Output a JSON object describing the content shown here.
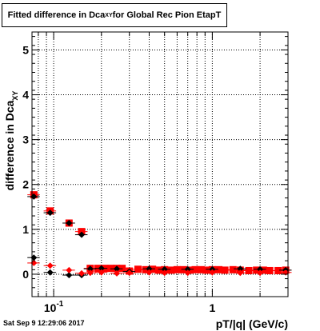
{
  "title_main": "Fitted difference in Dca",
  "title_sub": "XY",
  "title_rest": " for Global Rec Pion EtapT",
  "timestamp": "Sat Sep  9 12:29:06 2017",
  "colors": {
    "red": "#ff0000",
    "black": "#000000",
    "grid": "#000000"
  },
  "chart_data": {
    "type": "scatter",
    "xlabel": "pT/|q| (GeV/c)",
    "ylabel_main": "difference in Dca",
    "ylabel_sub": "XY",
    "x_scale": "log",
    "xlim": [
      0.073,
      3.0
    ],
    "ylim": [
      -0.5,
      5.4
    ],
    "grid": true,
    "y_ticks": [
      0,
      1,
      2,
      3,
      4,
      5
    ],
    "y_tick_labels": [
      "0",
      "1",
      "2",
      "3",
      "4",
      "5"
    ],
    "x_tick_labels": [
      {
        "value": 0.1,
        "base": "10",
        "exp": "-1"
      },
      {
        "value": 1,
        "base": "1",
        "exp": ""
      }
    ],
    "series": [
      {
        "color": "#ff0000",
        "marker": "square",
        "x": [
          0.075,
          0.095,
          0.125,
          0.15,
          0.17,
          0.19,
          0.21,
          0.23,
          0.25,
          0.27,
          0.3,
          0.34,
          0.38,
          0.42,
          0.46,
          0.5,
          0.55,
          0.6,
          0.66,
          0.72,
          0.78,
          0.85,
          0.92,
          1.0,
          1.1,
          1.2,
          1.35,
          1.5,
          1.7,
          1.9,
          2.1,
          2.3,
          2.6,
          2.9
        ],
        "y": [
          1.77,
          1.41,
          1.14,
          0.95,
          0.13,
          0.13,
          0.13,
          0.13,
          0.13,
          0.13,
          0.07,
          0.11,
          0.1,
          0.11,
          0.09,
          0.1,
          0.09,
          0.1,
          0.1,
          0.09,
          0.1,
          0.1,
          0.09,
          0.1,
          0.1,
          0.09,
          0.1,
          0.09,
          0.08,
          0.09,
          0.09,
          0.08,
          0.08,
          0.09
        ]
      },
      {
        "color": "#000000",
        "marker": "diamond",
        "x": [
          0.075,
          0.095,
          0.125,
          0.15,
          0.17,
          0.2,
          0.25,
          0.3,
          0.4,
          0.5,
          0.7,
          1.0,
          1.5,
          2.0,
          2.9
        ],
        "y": [
          1.73,
          1.37,
          1.14,
          0.88,
          0.12,
          0.13,
          0.12,
          0.06,
          0.12,
          0.11,
          0.11,
          0.11,
          0.12,
          0.11,
          0.09
        ]
      },
      {
        "color": "#000000",
        "marker": "diamond",
        "x": [
          0.075,
          0.095,
          0.125,
          0.15
        ],
        "y": [
          0.37,
          0.04,
          -0.02,
          -0.02
        ]
      },
      {
        "color": "#ff0000",
        "marker": "diamond",
        "x": [
          0.075,
          0.095,
          0.125,
          0.15,
          0.17,
          0.2,
          0.25,
          0.3,
          0.4,
          0.5,
          0.7,
          1.0,
          1.5,
          2.0,
          2.9
        ],
        "y": [
          0.25,
          0.19,
          0.09,
          0.02,
          0.03,
          0.04,
          0.02,
          0.03,
          0.04,
          0.03,
          0.03,
          0.04,
          0.03,
          0.03,
          0.04
        ]
      }
    ]
  }
}
